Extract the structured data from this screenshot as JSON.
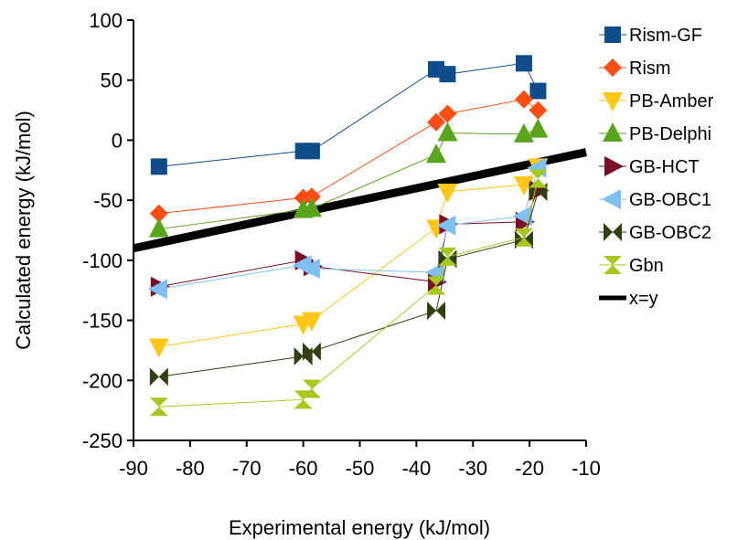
{
  "chart_data": {
    "type": "scatter",
    "xlabel": "Experimental energy (kJ/mol)",
    "ylabel": "Calculated energy (kJ/mol)",
    "xlim": [
      -90,
      -10
    ],
    "ylim": [
      -250,
      100
    ],
    "x_ticks": [
      -90,
      -80,
      -70,
      -60,
      -50,
      -40,
      -30,
      -20,
      -10
    ],
    "y_ticks": [
      -250,
      -200,
      -150,
      -100,
      -50,
      0,
      50,
      100
    ],
    "x_tick_labels": [
      "-90",
      "-80",
      "-70",
      "-60",
      "-50",
      "-40",
      "-30",
      "-20",
      "-10"
    ],
    "y_tick_labels": [
      "-250",
      "-200",
      "-150",
      "-100",
      "-50",
      "0",
      "50",
      "100"
    ],
    "grid": false,
    "legend_position": "right",
    "series": [
      {
        "name": "Rism-GF",
        "color": "#0f4c8a",
        "marker": "square",
        "x": [
          -85.5,
          -60,
          -58.5,
          -36.5,
          -34.5,
          -21,
          -18.5
        ],
        "y": [
          -22,
          -9,
          -9,
          59,
          55,
          64,
          41
        ]
      },
      {
        "name": "Rism",
        "color": "#ff4e14",
        "marker": "diamond",
        "x": [
          -85.5,
          -60,
          -58.5,
          -36.5,
          -34.5,
          -21,
          -18.5
        ],
        "y": [
          -61,
          -48,
          -47,
          15,
          22,
          34,
          25
        ]
      },
      {
        "name": "PB-Amber",
        "color": "#ffc819",
        "marker": "triangle-down",
        "x": [
          -85.5,
          -60,
          -58.5,
          -36.5,
          -34.5,
          -21,
          -18.5
        ],
        "y": [
          -172,
          -153,
          -150,
          -73,
          -43,
          -37,
          -22
        ]
      },
      {
        "name": "PB-Delphi",
        "color": "#5aa51c",
        "marker": "triangle-up",
        "x": [
          -85.5,
          -60,
          -58.5,
          -36.5,
          -34.5,
          -21,
          -18.5
        ],
        "y": [
          -74,
          -58,
          -57,
          -12,
          6,
          5,
          9
        ]
      },
      {
        "name": "GB-HCT",
        "color": "#7a0f28",
        "marker": "triangle-right",
        "x": [
          -85.5,
          -60,
          -58.5,
          -36.5,
          -34.5,
          -21,
          -18.5
        ],
        "y": [
          -122,
          -100,
          -105,
          -118,
          -70,
          -68,
          -42
        ]
      },
      {
        "name": "GB-OBC1",
        "color": "#80c0f0",
        "marker": "triangle-left",
        "x": [
          -85.5,
          -60,
          -58.5,
          -36.5,
          -34.5,
          -21,
          -18.5
        ],
        "y": [
          -124,
          -104,
          -107,
          -110,
          -71,
          -63,
          -23
        ]
      },
      {
        "name": "GB-OBC2",
        "color": "#304010",
        "marker": "bowtie",
        "x": [
          -85.5,
          -60,
          -58.5,
          -36.5,
          -34.5,
          -21,
          -18.5
        ],
        "y": [
          -197,
          -180,
          -176,
          -142,
          -99,
          -83,
          -43
        ]
      },
      {
        "name": "Gbn",
        "color": "#a8c81e",
        "marker": "hourglass",
        "x": [
          -85.5,
          -60,
          -58.5,
          -36.5,
          -34.5,
          -21,
          -18.5
        ],
        "y": [
          -222,
          -216,
          -207,
          -121,
          -97,
          -81,
          -32
        ]
      },
      {
        "name": "x=y",
        "color": "#000000",
        "marker": "line",
        "x": [
          -90,
          -10
        ],
        "y": [
          -90,
          -10
        ]
      }
    ]
  }
}
